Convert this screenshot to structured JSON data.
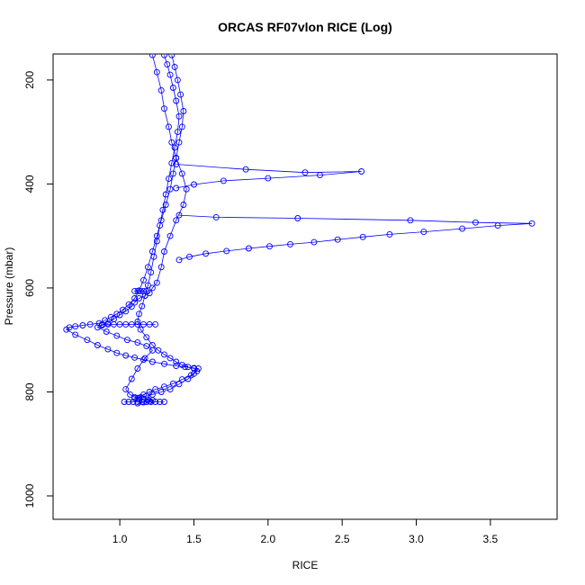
{
  "chart_data": {
    "type": "line",
    "title": "ORCAS RF07vlon RICE (Log)",
    "xlabel": "RICE",
    "ylabel": "Pressure (mbar)",
    "xlim": [
      0.55,
      3.95
    ],
    "ylim": [
      150,
      1045
    ],
    "y_reversed": true,
    "x_ticks": [
      1.0,
      1.5,
      2.0,
      2.5,
      3.0,
      3.5
    ],
    "x_tick_labels": [
      "1.0",
      "1.5",
      "2.0",
      "2.5",
      "3.0",
      "3.5"
    ],
    "y_ticks": [
      200,
      400,
      600,
      800,
      1000
    ],
    "y_tick_labels": [
      "200",
      "400",
      "600",
      "800",
      "1000"
    ],
    "grid": false,
    "legend": "none",
    "marker": "open-circle",
    "color": "#0000ff",
    "series": [
      {
        "x": [
          1.22,
          1.25,
          1.28,
          1.3,
          1.33,
          1.35,
          1.38,
          1.42,
          1.45,
          1.43,
          1.38,
          1.34,
          1.3,
          1.28,
          1.25,
          1.22,
          1.2,
          1.17,
          1.13,
          1.1,
          1.08,
          1.04,
          1.0,
          0.96,
          0.92,
          0.88,
          0.85,
          0.91,
          0.98,
          1.05,
          1.12,
          1.18,
          1.22,
          1.17,
          1.12,
          1.08,
          1.04,
          1.07,
          1.1,
          1.13,
          1.16,
          1.19,
          1.22,
          1.2,
          1.16,
          1.12
        ],
        "y": [
          152,
          185,
          220,
          255,
          290,
          320,
          350,
          380,
          410,
          440,
          470,
          500,
          530,
          560,
          590,
          600,
          610,
          615,
          620,
          628,
          636,
          645,
          652,
          660,
          668,
          672,
          676,
          684,
          692,
          700,
          705,
          712,
          720,
          735,
          755,
          775,
          795,
          805,
          810,
          812,
          814,
          815,
          816,
          818,
          820,
          822
        ]
      },
      {
        "x": [
          1.35,
          1.37,
          1.39,
          1.41,
          1.43,
          1.42,
          1.4,
          1.38,
          1.36,
          1.34,
          1.31,
          1.28,
          1.25,
          1.22,
          1.19,
          1.16,
          1.13,
          1.1,
          1.06,
          1.02,
          0.98,
          0.94,
          0.9,
          0.86,
          0.8,
          0.75,
          0.7,
          0.66,
          0.64,
          0.7,
          0.78,
          0.85,
          0.92,
          0.98,
          1.04,
          1.1,
          1.16,
          1.22,
          1.3,
          1.38,
          1.44,
          1.5,
          1.53,
          1.5,
          1.46,
          1.4,
          1.34,
          1.28,
          1.22,
          1.18,
          1.14,
          1.1
        ],
        "y": [
          152,
          175,
          200,
          228,
          260,
          290,
          320,
          350,
          380,
          410,
          440,
          470,
          500,
          530,
          560,
          585,
          605,
          620,
          632,
          642,
          650,
          656,
          662,
          668,
          670,
          672,
          674,
          676,
          680,
          690,
          700,
          710,
          718,
          725,
          730,
          734,
          738,
          742,
          746,
          750,
          752,
          754,
          755,
          765,
          775,
          785,
          795,
          800,
          805,
          808,
          810,
          812
        ]
      },
      {
        "x": [
          1.3,
          1.32,
          1.34,
          1.36,
          1.38,
          1.4,
          1.39,
          1.37,
          1.35,
          1.33,
          1.31,
          1.29,
          1.27,
          1.25,
          1.23,
          1.21,
          1.19,
          1.17,
          1.15,
          1.13,
          1.12,
          1.14,
          1.18,
          1.22,
          1.26,
          1.3,
          1.34,
          1.38,
          1.42,
          1.46,
          1.5,
          1.52,
          1.48,
          1.42,
          1.36,
          1.3,
          1.24,
          1.2,
          1.16,
          1.12
        ],
        "y": [
          152,
          170,
          190,
          215,
          240,
          270,
          300,
          330,
          360,
          390,
          420,
          450,
          480,
          510,
          540,
          570,
          595,
          615,
          635,
          650,
          665,
          680,
          695,
          710,
          720,
          728,
          735,
          742,
          748,
          752,
          755,
          760,
          768,
          776,
          784,
          790,
          795,
          800,
          805,
          812
        ]
      },
      {
        "x": [
          1.38,
          1.85,
          2.25,
          2.63,
          2.35,
          2.0,
          1.7,
          1.5,
          1.38
        ],
        "y": [
          362,
          372,
          378,
          376,
          383,
          389,
          394,
          401,
          408
        ]
      },
      {
        "x": [
          1.4,
          1.65,
          2.2,
          2.96,
          3.4,
          3.78,
          3.55,
          3.31,
          3.05,
          2.82,
          2.64,
          2.47,
          2.31,
          2.15,
          2.01,
          1.87,
          1.72,
          1.58,
          1.47,
          1.4
        ],
        "y": [
          460,
          464,
          466,
          470,
          474,
          476,
          480,
          486,
          492,
          497,
          502,
          507,
          512,
          516,
          520,
          524,
          529,
          534,
          540,
          546
        ]
      },
      {
        "x": [
          0.88,
          0.92,
          0.96,
          1.0,
          1.04,
          1.08,
          1.12,
          1.16,
          1.2,
          1.24
        ],
        "y": [
          670,
          670,
          670,
          670,
          670,
          670,
          670,
          670,
          670,
          670
        ]
      },
      {
        "x": [
          1.1,
          1.12,
          1.14,
          1.16,
          1.18
        ],
        "y": [
          606,
          606,
          606,
          606,
          606
        ]
      },
      {
        "x": [
          1.03,
          1.06,
          1.09,
          1.12,
          1.15,
          1.18,
          1.21,
          1.24,
          1.27,
          1.3
        ],
        "y": [
          819,
          819,
          819,
          819,
          819,
          819,
          819,
          819,
          819,
          819
        ]
      }
    ]
  }
}
